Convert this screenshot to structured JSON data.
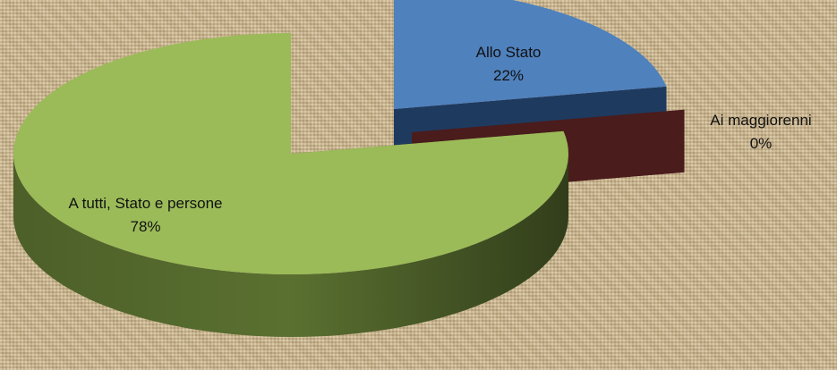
{
  "chart_data": {
    "type": "pie",
    "categories": [
      "Allo Stato",
      "Ai maggiorenni",
      "A tutti, Stato e persone"
    ],
    "values": [
      22,
      0,
      78
    ],
    "value_labels": [
      "22%",
      "0%",
      "78%"
    ],
    "colors": [
      "#4f81bd",
      "#632523",
      "#9bbb59"
    ],
    "side_colors": [
      "#1f3a5f",
      "#4a1c1c",
      "#5a7030"
    ]
  }
}
